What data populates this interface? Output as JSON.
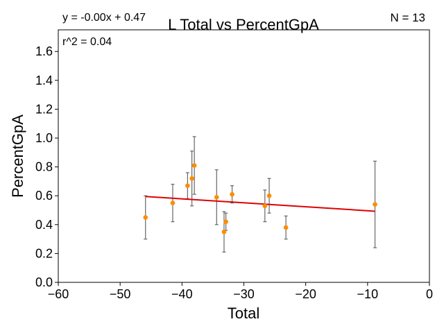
{
  "chart_data": {
    "type": "scatter",
    "title": "L Total vs PercentGpA",
    "xlabel": "Total",
    "ylabel": "PercentGpA",
    "xlim": [
      -60,
      0
    ],
    "ylim": [
      0,
      1.75
    ],
    "xticks": [
      -60,
      -50,
      -40,
      -30,
      -20,
      -10,
      0
    ],
    "xtick_labels": [
      "−60",
      "−50",
      "−40",
      "−30",
      "−20",
      "−10",
      "0"
    ],
    "yticks": [
      0.0,
      0.2,
      0.4,
      0.6,
      0.8,
      1.0,
      1.2,
      1.4,
      1.6
    ],
    "ytick_labels": [
      "0.0",
      "0.2",
      "0.4",
      "0.6",
      "0.8",
      "1.0",
      "1.2",
      "1.4",
      "1.6"
    ],
    "grid": false,
    "annotations": {
      "equation": "y = -0.00x + 0.47",
      "r2": "r^2 = 0.04",
      "n": "N = 13"
    },
    "points": [
      {
        "x": -45.9,
        "y": 0.45,
        "err": 0.15
      },
      {
        "x": -41.5,
        "y": 0.55,
        "err": 0.13
      },
      {
        "x": -39.1,
        "y": 0.67,
        "err": 0.09
      },
      {
        "x": -38.4,
        "y": 0.72,
        "err": 0.19
      },
      {
        "x": -38.0,
        "y": 0.81,
        "err": 0.2
      },
      {
        "x": -34.4,
        "y": 0.59,
        "err": 0.19
      },
      {
        "x": -33.2,
        "y": 0.35,
        "err": 0.14
      },
      {
        "x": -32.9,
        "y": 0.42,
        "err": 0.06
      },
      {
        "x": -31.9,
        "y": 0.61,
        "err": 0.06
      },
      {
        "x": -26.6,
        "y": 0.53,
        "err": 0.11
      },
      {
        "x": -25.9,
        "y": 0.6,
        "err": 0.12
      },
      {
        "x": -23.2,
        "y": 0.38,
        "err": 0.08
      },
      {
        "x": -8.8,
        "y": 0.54,
        "err": 0.3
      }
    ],
    "fit_line": {
      "x": [
        -45.9,
        -8.8
      ],
      "y": [
        0.595,
        0.493
      ]
    },
    "colors": {
      "points": "#ff8c00",
      "errorbars": "#666666",
      "fit": "#e00000"
    }
  }
}
